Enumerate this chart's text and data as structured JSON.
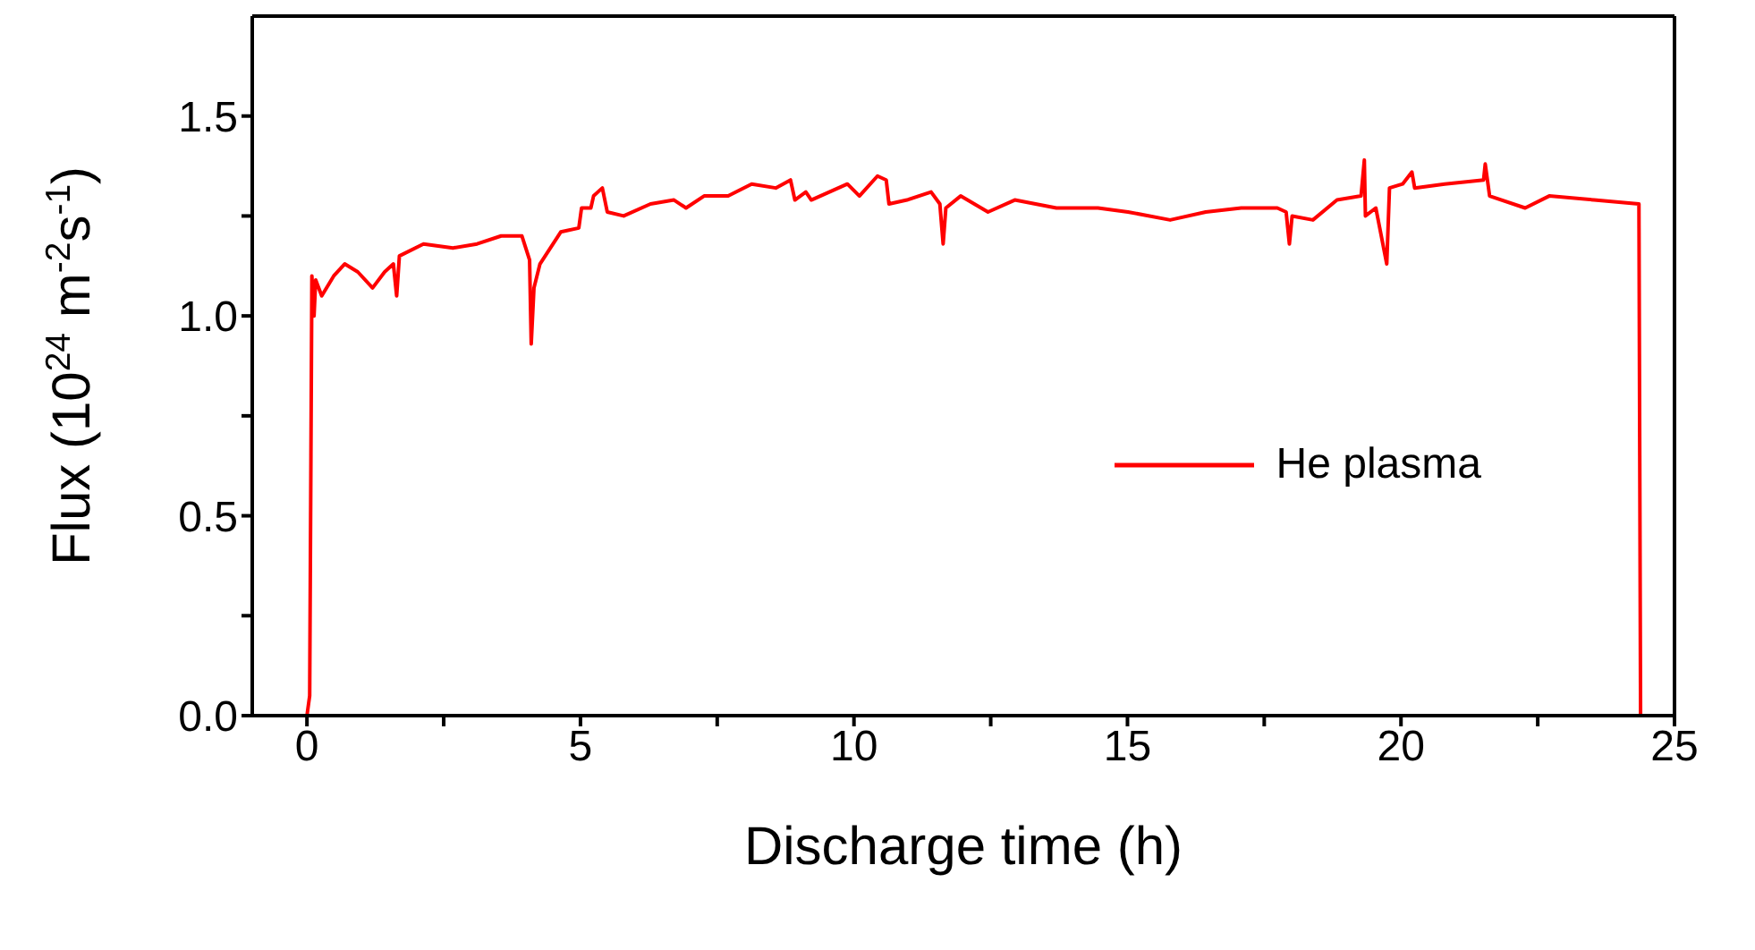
{
  "chart_data": {
    "type": "line",
    "xlabel": "Discharge time (h)",
    "ylabel": "Flux (10$^{24}$ m$^{-2}$s$^{-1}$)",
    "xlim": [
      -1,
      25
    ],
    "ylim": [
      0,
      1.75
    ],
    "xticks": [
      0,
      {
        "value": 2.5,
        "label": null
      },
      5,
      {
        "value": 7.5,
        "label": null
      },
      10,
      {
        "value": 12.5,
        "label": null
      },
      15,
      {
        "value": 17.5,
        "label": null
      },
      20,
      {
        "value": 22.5,
        "label": null
      },
      25
    ],
    "yticks": [
      {
        "value": 0,
        "label": "0.0"
      },
      {
        "value": 0.25,
        "label": null
      },
      {
        "value": 0.5,
        "label": "0.5"
      },
      {
        "value": 0.75,
        "label": null
      },
      {
        "value": 1,
        "label": "1.0"
      },
      {
        "value": 1.25,
        "label": null
      },
      {
        "value": 1.5,
        "label": "1.5"
      }
    ],
    "legend": "right",
    "grid": false,
    "marker": "none",
    "line_style": "solid",
    "series": [
      {
        "name": "He plasma",
        "color": "#ff0000",
        "x": [
          0,
          0.05,
          0.09,
          0.13,
          0.16,
          0.27,
          0.49,
          0.69,
          0.93,
          1.2,
          1.42,
          1.58,
          1.64,
          1.69,
          2.13,
          2.67,
          3.11,
          3.55,
          3.93,
          4.07,
          4.1,
          4.15,
          4.26,
          4.64,
          4.97,
          5.02,
          5.19,
          5.24,
          5.4,
          5.49,
          5.79,
          6.28,
          6.71,
          6.93,
          7.26,
          7.7,
          8.13,
          8.57,
          8.84,
          8.92,
          9.12,
          9.22,
          9.88,
          10.1,
          10.43,
          10.59,
          10.64,
          10.97,
          11.41,
          11.57,
          11.63,
          11.68,
          11.95,
          12.45,
          12.94,
          13.7,
          14.46,
          15.01,
          15.78,
          16.43,
          17.08,
          17.74,
          17.9,
          17.96,
          18.01,
          18.39,
          18.83,
          19.27,
          19.33,
          19.35,
          19.54,
          19.74,
          19.79,
          20.03,
          20.2,
          20.25,
          20.8,
          21.51,
          21.54,
          21.62,
          22.27,
          22.71,
          23.53,
          24.35,
          24.38
        ],
        "values": [
          0,
          0.05,
          1.1,
          1,
          1.09,
          1.05,
          1.1,
          1.13,
          1.11,
          1.07,
          1.11,
          1.13,
          1.05,
          1.15,
          1.18,
          1.17,
          1.18,
          1.2,
          1.2,
          1.14,
          0.93,
          1.07,
          1.13,
          1.21,
          1.22,
          1.27,
          1.27,
          1.3,
          1.32,
          1.26,
          1.25,
          1.28,
          1.29,
          1.27,
          1.3,
          1.3,
          1.33,
          1.32,
          1.34,
          1.29,
          1.31,
          1.29,
          1.33,
          1.3,
          1.35,
          1.34,
          1.28,
          1.29,
          1.31,
          1.28,
          1.18,
          1.27,
          1.3,
          1.26,
          1.29,
          1.27,
          1.27,
          1.26,
          1.24,
          1.26,
          1.27,
          1.27,
          1.26,
          1.18,
          1.25,
          1.24,
          1.29,
          1.3,
          1.39,
          1.25,
          1.27,
          1.13,
          1.32,
          1.33,
          1.36,
          1.32,
          1.33,
          1.34,
          1.38,
          1.3,
          1.27,
          1.3,
          1.29,
          1.28,
          0
        ]
      }
    ]
  }
}
